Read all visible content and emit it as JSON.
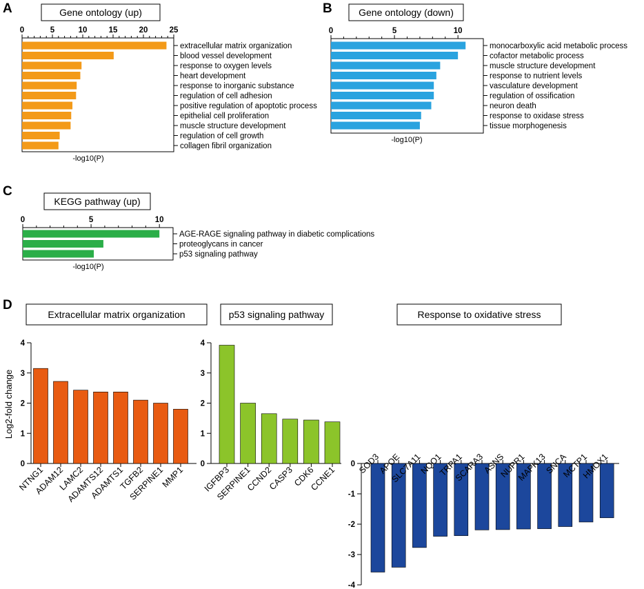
{
  "panels": {
    "A": {
      "letter": "A",
      "chart_data": {
        "type": "bar",
        "orientation": "horizontal",
        "title": "Gene ontology (up)",
        "xlabel": "-log10(P)",
        "xlim": [
          0,
          25
        ],
        "xticks": [
          0,
          5,
          10,
          15,
          20,
          25
        ],
        "color": "#f39a19",
        "categories": [
          "extracellular matrix organization",
          "blood vessel development",
          "response to oxygen levels",
          "heart development",
          "response to inorganic substance",
          "regulation of cell adhesion",
          "positive regulation of apoptotic process",
          "epithelial cell proliferation",
          "muscle structure development",
          "regulation of cell growth",
          "collagen fibril organization"
        ],
        "values": [
          23.8,
          15.1,
          9.8,
          9.6,
          9.0,
          8.9,
          8.3,
          8.1,
          8.0,
          6.2,
          6.0
        ]
      }
    },
    "B": {
      "letter": "B",
      "chart_data": {
        "type": "bar",
        "orientation": "horizontal",
        "title": "Gene ontology (down)",
        "xlabel": "-log10(P)",
        "xlim": [
          0,
          12
        ],
        "xticks": [
          0,
          5,
          10
        ],
        "color": "#2aa3df",
        "categories": [
          "monocarboxylic acid metabolic process",
          "cofactor metabolic process",
          "muscle structure development",
          "response to nutrient levels",
          "vasculature development",
          "regulation of ossification",
          "neuron death",
          "response to oxidase stress",
          "tissue morphogenesis"
        ],
        "values": [
          10.6,
          10.0,
          8.6,
          8.3,
          8.1,
          8.1,
          7.9,
          7.1,
          7.0
        ]
      }
    },
    "C": {
      "letter": "C",
      "chart_data": {
        "type": "bar",
        "orientation": "horizontal",
        "title": "KEGG pathway (up)",
        "xlabel": "-log10(P)",
        "xlim": [
          0,
          11
        ],
        "xticks": [
          0,
          5,
          10
        ],
        "color": "#2bae48",
        "categories": [
          "AGE-RAGE signaling pathway in diabetic complications",
          "proteoglycans in cancer",
          "p53 signaling pathway"
        ],
        "values": [
          10.0,
          5.9,
          5.2
        ]
      }
    },
    "D": {
      "letter": "D",
      "ylabel": "Log2-fold change",
      "chart_data": [
        {
          "type": "bar",
          "title": "Extracellular matrix organization",
          "ylim": [
            0,
            4
          ],
          "yticks": [
            0,
            1,
            2,
            3,
            4
          ],
          "color": "#e85b12",
          "categories": [
            "NTNG1",
            "ADAM12",
            "LAMC2",
            "ADAMTS12",
            "ADAMTS1",
            "TGFB2",
            "SERPINE1",
            "MMP1"
          ],
          "values": [
            3.15,
            2.72,
            2.43,
            2.37,
            2.37,
            2.1,
            2.0,
            1.8
          ]
        },
        {
          "type": "bar",
          "title": "p53 signaling pathway",
          "ylim": [
            0,
            4
          ],
          "yticks": [
            0,
            1,
            2,
            3,
            4
          ],
          "color": "#8cc42a",
          "categories": [
            "IGFBP3",
            "SERPINE1",
            "CCND2",
            "CASP3",
            "CDK6",
            "CCNE1"
          ],
          "values": [
            3.92,
            2.0,
            1.65,
            1.47,
            1.44,
            1.38
          ]
        },
        {
          "type": "bar",
          "title": "Response to oxidative stress",
          "ylim": [
            -4,
            0
          ],
          "yticks": [
            0,
            -1,
            -2,
            -3,
            -4
          ],
          "color": "#1c479c",
          "categories": [
            "SOD3",
            "APOE",
            "SLC7A11",
            "NQO1",
            "TRPA1",
            "SCARA3",
            "ASNS",
            "NUPR1",
            "MAPK13",
            "SNCA",
            "MCTP1",
            "HMOX1"
          ],
          "values": [
            -3.58,
            -3.42,
            -2.77,
            -2.4,
            -2.38,
            -2.19,
            -2.18,
            -2.16,
            -2.15,
            -2.08,
            -1.93,
            -1.79
          ]
        }
      ]
    }
  }
}
